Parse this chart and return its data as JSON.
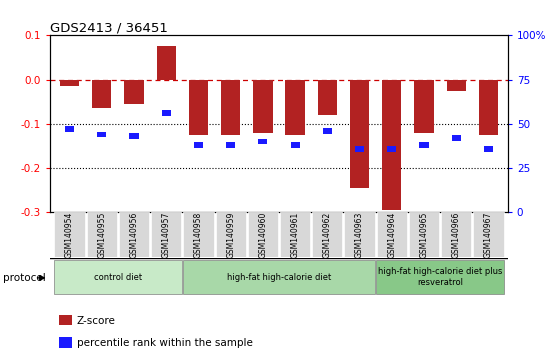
{
  "title": "GDS2413 / 36451",
  "samples": [
    "GSM140954",
    "GSM140955",
    "GSM140956",
    "GSM140957",
    "GSM140958",
    "GSM140959",
    "GSM140960",
    "GSM140961",
    "GSM140962",
    "GSM140963",
    "GSM140964",
    "GSM140965",
    "GSM140966",
    "GSM140967"
  ],
  "zscore": [
    -0.015,
    -0.065,
    -0.055,
    0.075,
    -0.125,
    -0.125,
    -0.12,
    -0.125,
    -0.08,
    -0.245,
    -0.295,
    -0.12,
    -0.025,
    -0.125
  ],
  "pct_rank": [
    47,
    44,
    43,
    56,
    38,
    38,
    40,
    38,
    46,
    36,
    36,
    38,
    42,
    36
  ],
  "ylim": [
    -0.3,
    0.1
  ],
  "yticks_left": [
    -0.3,
    -0.2,
    -0.1,
    0.0,
    0.1
  ],
  "yticks_right_vals": [
    0,
    25,
    50,
    75,
    100
  ],
  "bar_color": "#b22222",
  "pct_color": "#1a1aff",
  "zero_line_color": "#cc0000",
  "groups": [
    {
      "label": "control diet",
      "start": 0,
      "end": 4,
      "color": "#c8eac8"
    },
    {
      "label": "high-fat high-calorie diet",
      "start": 4,
      "end": 10,
      "color": "#a8d8a8"
    },
    {
      "label": "high-fat high-calorie diet plus\nresveratrol",
      "start": 10,
      "end": 14,
      "color": "#88c888"
    }
  ],
  "protocol_label": "protocol",
  "legend_items": [
    {
      "color": "#b22222",
      "label": "Z-score"
    },
    {
      "color": "#1a1aff",
      "label": "percentile rank within the sample"
    }
  ]
}
